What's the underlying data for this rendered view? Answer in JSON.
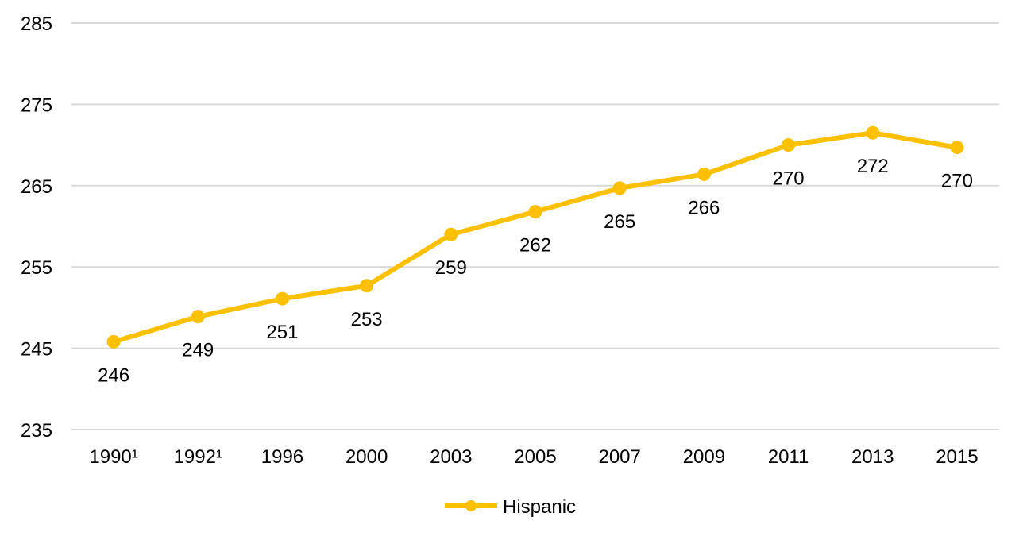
{
  "chart_data": {
    "type": "line",
    "title": "",
    "xlabel": "",
    "ylabel": "",
    "categories": [
      "1990¹",
      "1992¹",
      "1996",
      "2000",
      "2003",
      "2005",
      "2007",
      "2009",
      "2011",
      "2013",
      "2015"
    ],
    "series": [
      {
        "name": "Hispanic",
        "values": [
          245.8,
          248.9,
          251.1,
          252.7,
          259.0,
          261.8,
          264.7,
          266.4,
          270.0,
          271.5,
          269.7
        ],
        "data_labels": [
          "246",
          "249",
          "251",
          "253",
          "259",
          "262",
          "265",
          "266",
          "270",
          "272",
          "270"
        ],
        "color": "#FFC000"
      }
    ],
    "yticks": [
      "285",
      "275",
      "265",
      "255",
      "245",
      "235"
    ],
    "ylim": [
      235,
      285
    ],
    "grid": true,
    "gridline_color": "#D9D9D9",
    "legend_position": "bottom"
  }
}
